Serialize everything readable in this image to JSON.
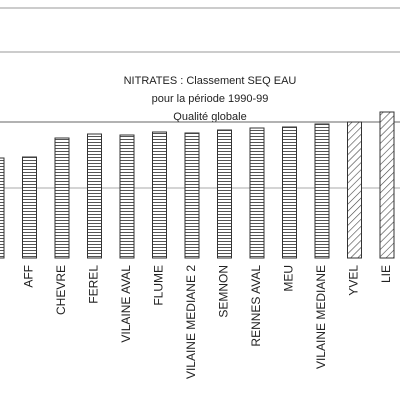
{
  "chart_data": {
    "type": "bar",
    "title": "NITRATES : Classement SEQ EAU",
    "subtitle": "pour la période 1990-99",
    "annotation": "Qualité globale",
    "categories": [
      null,
      "AFF",
      "CHEVRE",
      "FEREL",
      "VILAINE AVAL",
      "FLUME",
      "VILAINE MEDIANE 2",
      "SEMNON",
      "RENNES AVAL",
      "MEU",
      "VILAINE MEDIANE",
      "YVEL",
      "LIE"
    ],
    "values": [
      100,
      101,
      120,
      124,
      123,
      126,
      125,
      128,
      130,
      131,
      134,
      136,
      146
    ],
    "hatch": [
      "horizontal",
      "horizontal",
      "horizontal",
      "horizontal",
      "horizontal",
      "horizontal",
      "horizontal",
      "horizontal",
      "horizontal",
      "horizontal",
      "horizontal",
      "diagonal",
      "diagonal"
    ],
    "color": "#333333",
    "reference_lines": [
      136,
      70
    ],
    "ylim": [
      0,
      250
    ]
  }
}
